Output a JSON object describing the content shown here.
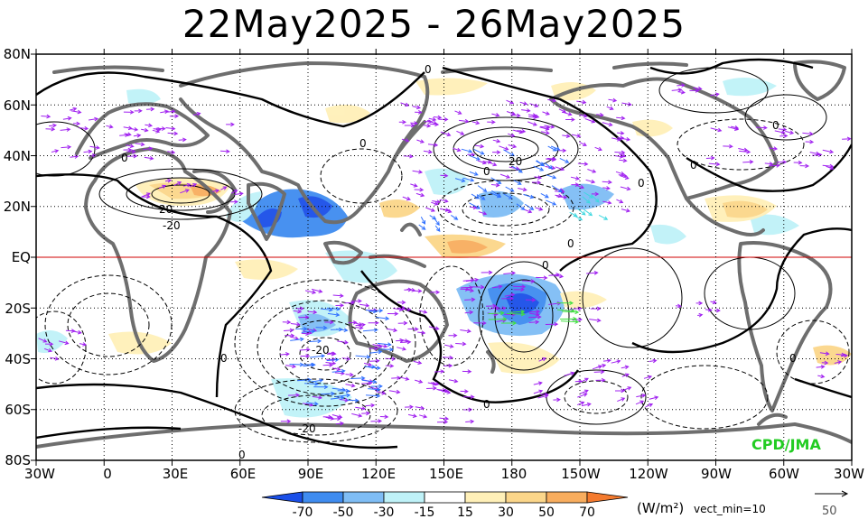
{
  "title": "22May2025 - 26May2025",
  "lat_labels": [
    "80N",
    "60N",
    "40N",
    "20N",
    "EQ",
    "20S",
    "40S",
    "60S",
    "80S"
  ],
  "lon_labels": [
    "30W",
    "0",
    "30E",
    "60E",
    "90E",
    "120E",
    "150E",
    "180",
    "150W",
    "120W",
    "90W",
    "60W",
    "30W"
  ],
  "colorbar": {
    "ticks": [
      "-70",
      "-50",
      "-30",
      "-15",
      "15",
      "30",
      "50",
      "70"
    ],
    "colors": [
      "#1a4fe8",
      "#3f8cf0",
      "#7fbdf5",
      "#bff2f8",
      "#ffffff",
      "#fff0b8",
      "#fbd68a",
      "#f8ad5e",
      "#f47a2e"
    ],
    "units": "(W/m²)",
    "vect_min": "vect_min=10",
    "ref_value": "50"
  },
  "credit": "CPD/JMA",
  "contour_labels": [
    "0",
    "0",
    "20",
    "0",
    "-20",
    "0",
    "0",
    "0",
    "20",
    "0",
    "0",
    "0",
    "0",
    "0",
    "-20",
    "0",
    "-20",
    "0"
  ],
  "colors": {
    "coast": "#6e6e6e",
    "equator": "#d00000",
    "vector_purple": "#a020f0",
    "vector_blue": "#3070ff",
    "vector_cyan": "#40d8e0",
    "vector_green": "#40e040"
  }
}
